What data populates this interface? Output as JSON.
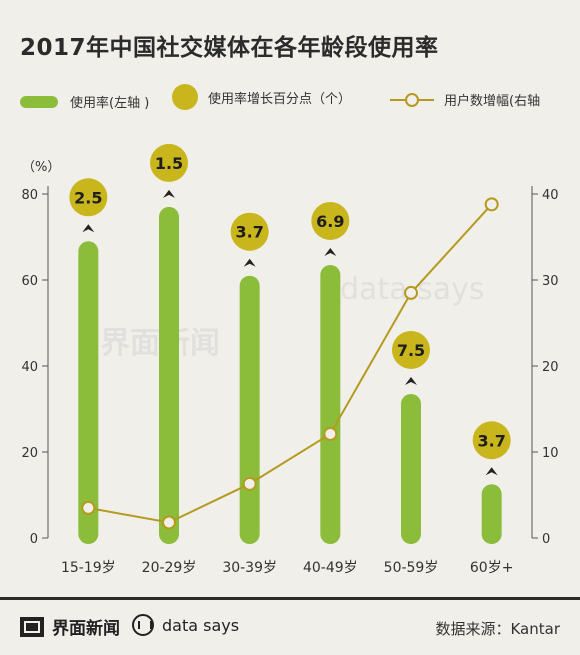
{
  "title": "2017年中国社交媒体在各年龄段使用率",
  "legend": {
    "bar_label": "使用率(左轴 )",
    "dot_label": "使用率增长百分点（个）",
    "line_label": "用户数增幅(右轴"
  },
  "unit_label": "（%）",
  "watermark": {
    "brand": "界面新闻",
    "ds": "data says"
  },
  "footer": {
    "brand": "界面新闻",
    "ds": "data says",
    "source": "数据来源：Kantar"
  },
  "colors": {
    "bar": "#8bbd3a",
    "dot": "#c9b51c",
    "line": "#b49a1f",
    "dot_text": "#1e1e1e"
  },
  "chart_data": {
    "type": "bar",
    "title": "2017年中国社交媒体在各年龄段使用率",
    "categories": [
      "15-19岁",
      "20-29岁",
      "30-39岁",
      "40-49岁",
      "50-59岁",
      "60岁+"
    ],
    "series": [
      {
        "name": "使用率(左轴 )",
        "type": "bar",
        "axis": "left",
        "values": [
          69,
          77,
          61,
          63.5,
          33.5,
          12.5
        ]
      },
      {
        "name": "使用率增长百分点（个）",
        "type": "label-dot",
        "values": [
          2.5,
          1.5,
          3.7,
          6.9,
          7.5,
          3.7
        ]
      },
      {
        "name": "用户数增幅(右轴",
        "type": "line",
        "axis": "right",
        "values": [
          3.5,
          1.8,
          6.3,
          12.1,
          28.5,
          38.8
        ]
      }
    ],
    "y_left": {
      "ticks": [
        0,
        20,
        40,
        60,
        80
      ],
      "range": [
        0,
        80
      ]
    },
    "y_right": {
      "ticks": [
        0,
        10,
        20,
        30,
        40
      ],
      "range": [
        0,
        40
      ]
    },
    "grid": false,
    "legend": "top"
  }
}
